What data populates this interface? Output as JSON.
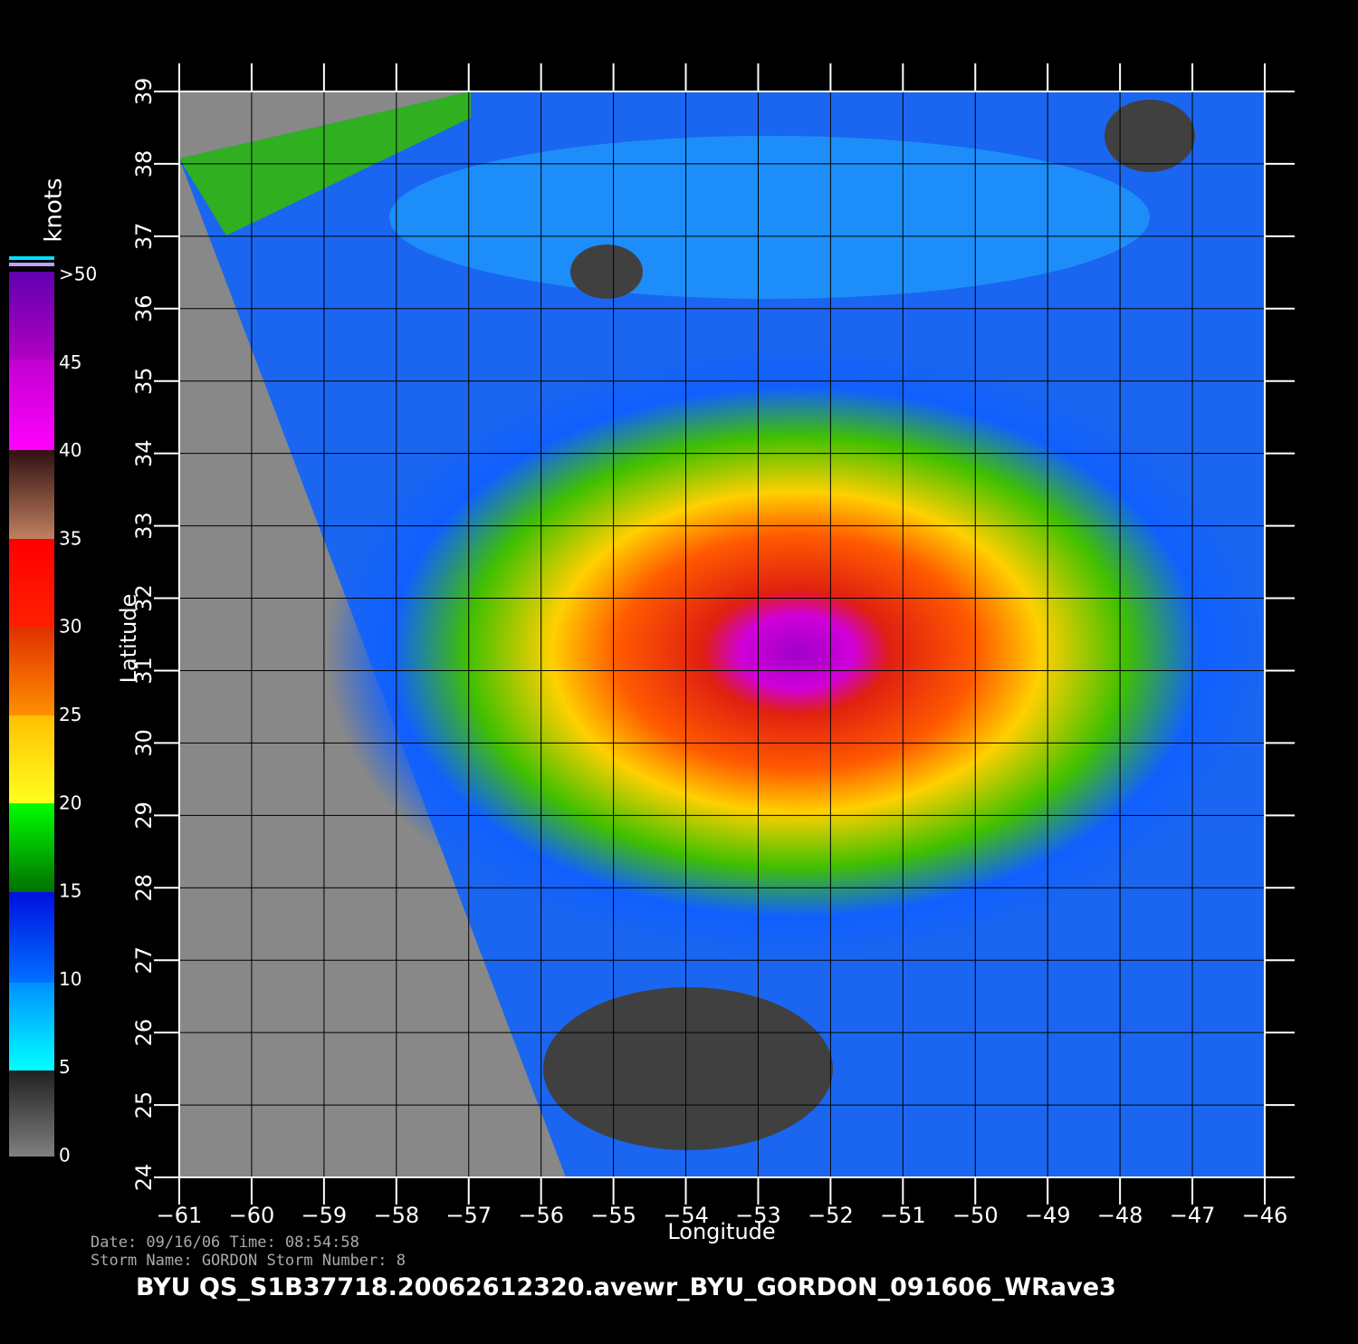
{
  "map": {
    "longitude_ticks": [
      "−61",
      "−60",
      "−59",
      "−58",
      "−57",
      "−56",
      "−55",
      "−54",
      "−53",
      "−52",
      "−51",
      "−50",
      "−49",
      "−48",
      "−47",
      "−46"
    ],
    "latitude_ticks": [
      "24",
      "25",
      "26",
      "27",
      "28",
      "29",
      "30",
      "31",
      "32",
      "33",
      "34",
      "35",
      "36",
      "37",
      "38",
      "39"
    ],
    "x_axis_label": "Longitude",
    "y_axis_label": "Latitude"
  },
  "colorbar": {
    "unit": "knots",
    "labels": [
      "0",
      "5",
      "10",
      "15",
      "20",
      "25",
      "30",
      "35",
      "40",
      "45",
      ">50"
    ]
  },
  "footer": {
    "date_line": "Date: 09/16/06   Time: 08:54:58",
    "storm_line": "Storm Name: GORDON   Storm Number: 8",
    "title": "BYU  QS_S1B37718.20062612320.avewr_BYU_GORDON_091606_WRave3"
  }
}
